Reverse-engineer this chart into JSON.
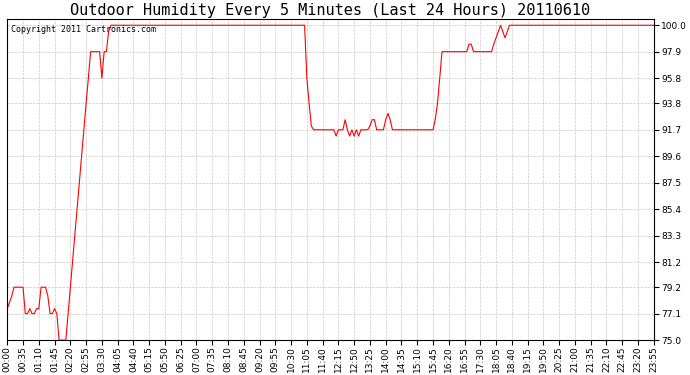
{
  "title": "Outdoor Humidity Every 5 Minutes (Last 24 Hours) 20110610",
  "copyright": "Copyright 2011 Cartronics.com",
  "line_color": "#ff0000",
  "bg_color": "#ffffff",
  "plot_bg_color": "#ffffff",
  "grid_color": "#c8c8c8",
  "ylim": [
    75.0,
    100.5
  ],
  "yticks": [
    75.0,
    77.1,
    79.2,
    81.2,
    83.3,
    85.4,
    87.5,
    89.6,
    91.7,
    93.8,
    95.8,
    97.9,
    100.0
  ],
  "title_fontsize": 11,
  "tick_fontsize": 6.5,
  "copyright_fontsize": 6.0,
  "xtick_step": 35,
  "humidity": [
    77.5,
    78.0,
    78.5,
    79.2,
    79.2,
    79.2,
    79.2,
    79.2,
    77.1,
    77.1,
    77.5,
    77.1,
    77.1,
    77.5,
    77.5,
    79.2,
    79.2,
    79.2,
    78.5,
    77.1,
    77.1,
    77.5,
    77.1,
    75.0,
    75.0,
    75.0,
    75.0,
    77.1,
    79.2,
    81.2,
    83.3,
    85.4,
    87.5,
    89.6,
    91.7,
    93.8,
    95.8,
    97.9,
    97.9,
    97.9,
    97.9,
    97.9,
    95.8,
    97.9,
    97.9,
    99.5,
    100.0,
    100.0,
    100.0,
    100.0,
    100.0,
    100.0,
    100.0,
    100.0,
    100.0,
    100.0,
    100.0,
    100.0,
    100.0,
    100.0,
    100.0,
    100.0,
    100.0,
    100.0,
    100.0,
    100.0,
    100.0,
    100.0,
    100.0,
    100.0,
    100.0,
    100.0,
    100.0,
    100.0,
    100.0,
    100.0,
    100.0,
    100.0,
    100.0,
    100.0,
    100.0,
    100.0,
    100.0,
    100.0,
    100.0,
    100.0,
    100.0,
    100.0,
    100.0,
    100.0,
    100.0,
    100.0,
    100.0,
    100.0,
    100.0,
    100.0,
    100.0,
    100.0,
    100.0,
    100.0,
    100.0,
    100.0,
    100.0,
    100.0,
    100.0,
    100.0,
    100.0,
    100.0,
    100.0,
    100.0,
    100.0,
    100.0,
    100.0,
    100.0,
    100.0,
    100.0,
    100.0,
    100.0,
    100.0,
    100.0,
    100.0,
    100.0,
    100.0,
    100.0,
    100.0,
    100.0,
    100.0,
    100.0,
    100.0,
    100.0,
    100.0,
    100.0,
    100.0,
    95.8,
    93.8,
    92.0,
    91.7,
    91.7,
    91.7,
    91.7,
    91.7,
    91.7,
    91.7,
    91.7,
    91.7,
    91.7,
    91.2,
    91.7,
    91.7,
    91.7,
    92.5,
    91.7,
    91.2,
    91.7,
    91.2,
    91.7,
    91.2,
    91.7,
    91.7,
    91.7,
    91.7,
    92.0,
    92.5,
    92.5,
    91.7,
    91.7,
    91.7,
    91.7,
    92.5,
    93.0,
    92.5,
    91.7,
    91.7,
    91.7,
    91.7,
    91.7,
    91.7,
    91.7,
    91.7,
    91.7,
    91.7,
    91.7,
    91.7,
    91.7,
    91.7,
    91.7,
    91.7,
    91.7,
    91.7,
    91.7,
    92.5,
    93.8,
    95.8,
    97.9,
    97.9,
    97.9,
    97.9,
    97.9,
    97.9,
    97.9,
    97.9,
    97.9,
    97.9,
    97.9,
    97.9,
    98.5,
    98.5,
    97.9,
    97.9,
    97.9,
    97.9,
    97.9,
    97.9,
    97.9,
    97.9,
    97.9,
    98.5,
    99.0,
    99.5,
    100.0,
    99.5,
    99.0,
    99.5,
    100.0,
    100.0,
    100.0,
    100.0,
    100.0,
    100.0,
    100.0,
    100.0,
    100.0,
    100.0,
    100.0,
    100.0,
    100.0,
    100.0,
    100.0,
    100.0,
    100.0,
    100.0,
    100.0,
    100.0,
    100.0,
    100.0,
    100.0,
    100.0,
    100.0,
    100.0,
    100.0,
    100.0,
    100.0,
    100.0,
    100.0,
    100.0,
    100.0,
    100.0,
    100.0,
    100.0,
    100.0,
    100.0,
    100.0,
    100.0,
    100.0,
    100.0,
    100.0,
    100.0,
    100.0,
    100.0,
    100.0,
    100.0,
    100.0,
    100.0,
    100.0,
    100.0,
    100.0,
    100.0,
    100.0,
    100.0,
    100.0,
    100.0,
    100.0,
    100.0,
    100.0,
    100.0,
    100.0,
    100.0,
    100.0
  ]
}
